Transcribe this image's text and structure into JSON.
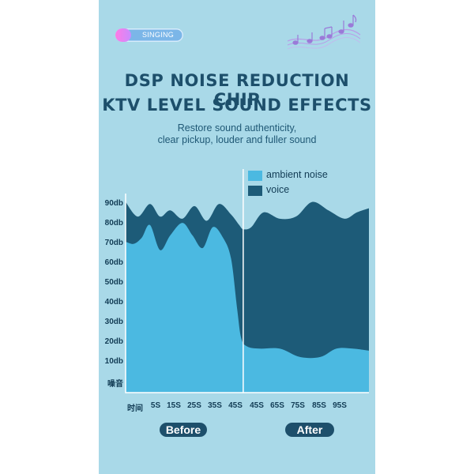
{
  "badge": {
    "label": "SINGING"
  },
  "header": {
    "title_line1": "DSP NOISE REDUCTION CHIP",
    "title_line2": "KTV LEVEL SOUND EFFECTS",
    "subtitle_line1": "Restore sound authenticity,",
    "subtitle_line2": "clear pickup, louder and fuller sound"
  },
  "icons": {
    "music_notes": "music-notes-icon"
  },
  "colors": {
    "panel": "#a9d9e8",
    "ambient_noise": "#4bb9e1",
    "voice": "#1d5b78",
    "heading": "#1d4f6b"
  },
  "phases": {
    "before": "Before",
    "after": "After"
  },
  "chart_data": {
    "type": "area",
    "legend": [
      {
        "label": "ambient noise",
        "color": "#4bb9e1"
      },
      {
        "label": "voice",
        "color": "#1d5b78"
      }
    ],
    "y_ticks": [
      "90db",
      "80db",
      "70db",
      "60db",
      "50db",
      "40db",
      "30db",
      "20db",
      "10db",
      "噪音"
    ],
    "x_ticks": [
      "时间",
      "5S",
      "15S",
      "25S",
      "35S",
      "45S",
      "45S",
      "65S",
      "75S",
      "85S",
      "95S"
    ],
    "ylim": [
      0,
      95
    ],
    "x_range": [
      0,
      120
    ],
    "divider_x": 58,
    "grid": false,
    "series": [
      {
        "name": "voice",
        "x": [
          0,
          6,
          12,
          17,
          22,
          28,
          34,
          40,
          46,
          52,
          56,
          58,
          62,
          68,
          76,
          84,
          92,
          100,
          108,
          114,
          120
        ],
        "values": [
          91,
          84,
          90,
          84,
          87,
          83,
          89,
          82,
          90,
          85,
          80,
          78,
          79,
          86,
          83,
          84,
          91,
          87,
          83,
          86,
          88
        ]
      },
      {
        "name": "ambient noise",
        "x": [
          0,
          4,
          8,
          12,
          17,
          22,
          28,
          33,
          38,
          43,
          48,
          52,
          55,
          57,
          60,
          66,
          76,
          86,
          96,
          104,
          112,
          120
        ],
        "values": [
          72,
          71,
          74,
          80,
          68,
          75,
          81,
          75,
          69,
          79,
          74,
          64,
          40,
          26,
          22,
          21,
          21,
          17,
          17,
          21,
          21,
          20
        ]
      }
    ]
  }
}
